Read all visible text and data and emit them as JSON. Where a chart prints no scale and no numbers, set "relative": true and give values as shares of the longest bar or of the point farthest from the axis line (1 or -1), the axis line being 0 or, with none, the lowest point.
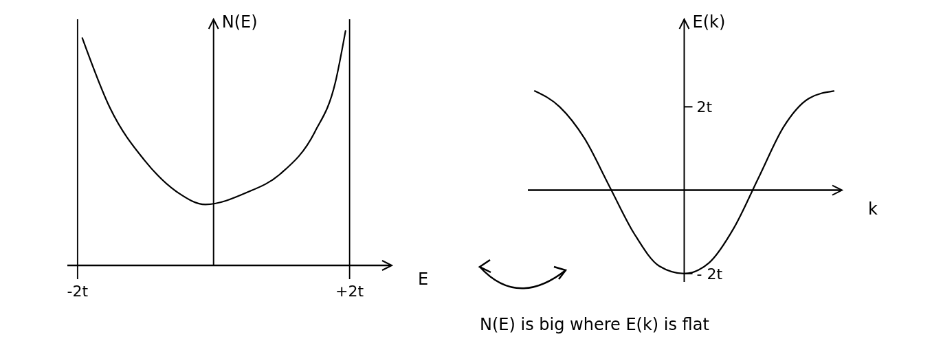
{
  "chart_data": [
    {
      "type": "line",
      "relative": true,
      "xlabel": "E",
      "ylabel": "N(E)",
      "xlim": [
        -2.15,
        2.6
      ],
      "xticks": [
        {
          "value": -2,
          "label": "-2t"
        },
        {
          "value": 2,
          "label": "+2t"
        }
      ],
      "tick_labels": "x",
      "ref_lines": [
        {
          "axis": "x",
          "value": -2,
          "color": "#000000"
        },
        {
          "axis": "x",
          "value": 2,
          "color": "#000000"
        }
      ],
      "x": [
        -1.93,
        -1.52,
        -1.02,
        -0.52,
        -0.12,
        0.48,
        0.98,
        1.49,
        1.79,
        1.94
      ],
      "series": [
        {
          "color": "#000000",
          "values": [
            0.97,
            0.67,
            0.45,
            0.31,
            0.26,
            0.31,
            0.39,
            0.57,
            0.78,
            1.0
          ]
        }
      ]
    },
    {
      "type": "line",
      "xlabel": "k",
      "ylabel": "E(k)",
      "ylim": [
        -2.2,
        4.1
      ],
      "yticks": [
        {
          "value": 2,
          "label": "2t"
        },
        {
          "value": -2,
          "label": "- 2t"
        }
      ],
      "tick_labels": "y",
      "annotations": [
        "N(E) is big where E(k) is flat"
      ],
      "categories": [
        null,
        null,
        null,
        null,
        null,
        null,
        null,
        null,
        null,
        null,
        null,
        null,
        null
      ],
      "series": [
        {
          "color": "#000000",
          "values": [
            2.38,
            2.0,
            1.24,
            0.09,
            -1.05,
            -1.82,
            -2.0,
            -1.74,
            -0.9,
            0.32,
            1.53,
            2.2,
            2.38
          ]
        }
      ]
    }
  ]
}
